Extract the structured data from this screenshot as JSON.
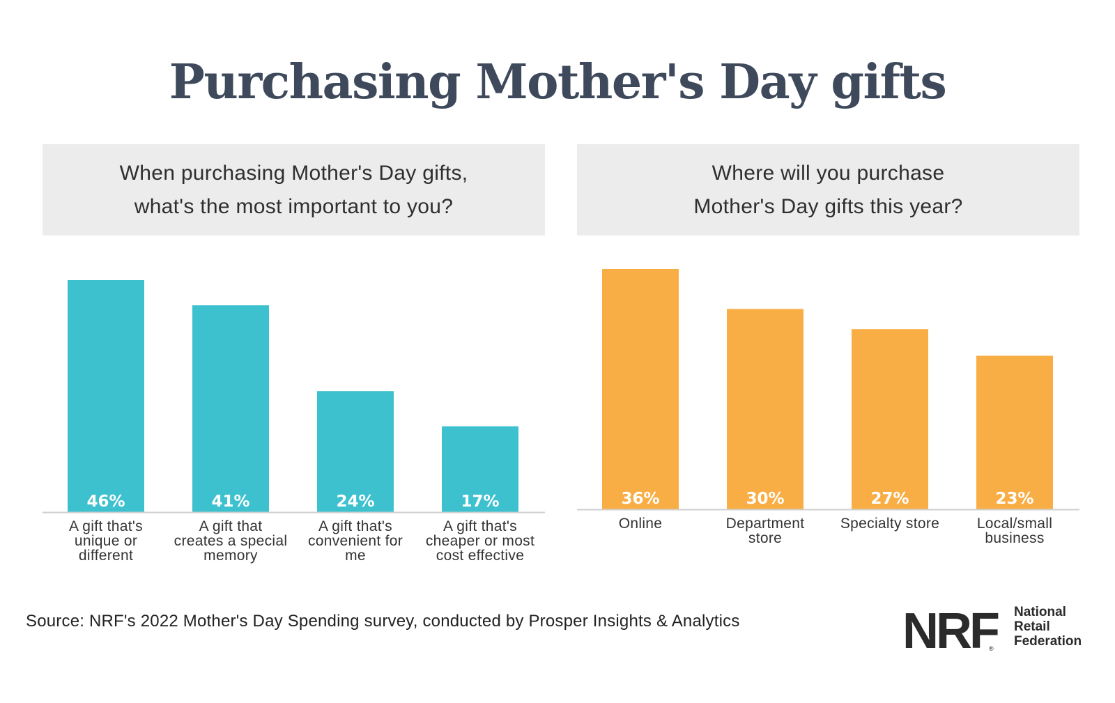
{
  "title": "Purchasing Mother's Day gifts",
  "questions": {
    "left": [
      "When purchasing Mother's Day gifts,",
      "what's the most important to you?"
    ],
    "right": [
      "Where will you purchase",
      "Mother's Day gifts this year?"
    ]
  },
  "chart_data": [
    {
      "type": "bar",
      "title": "When purchasing Mother's Day gifts, what's the most important to you?",
      "categories": [
        [
          "A gift that's",
          "unique or",
          "different"
        ],
        [
          "A gift that",
          "creates a special",
          "memory"
        ],
        [
          "A gift that's",
          "convenient for",
          "me"
        ],
        [
          "A gift that's",
          "cheaper or most",
          "cost effective"
        ]
      ],
      "values": [
        46,
        41,
        24,
        17
      ],
      "value_labels": [
        "46%",
        "41%",
        "24%",
        "17%"
      ],
      "color": "#3ec1cf",
      "ylim": [
        0,
        46
      ],
      "grid": false,
      "legend": "none"
    },
    {
      "type": "bar",
      "title": "Where will you purchase Mother's Day gifts this year?",
      "categories": [
        [
          "Online"
        ],
        [
          "Department",
          "store"
        ],
        [
          "Specialty store"
        ],
        [
          "Local/small",
          "business"
        ]
      ],
      "values": [
        36,
        30,
        27,
        23
      ],
      "value_labels": [
        "36%",
        "30%",
        "27%",
        "23%"
      ],
      "color": "#f9ae45",
      "ylim": [
        0,
        36
      ],
      "grid": false,
      "legend": "none"
    }
  ],
  "source": "Source: NRF's 2022 Mother's Day Spending survey, conducted by Prosper Insights & Analytics",
  "logo": {
    "mark": "NRF",
    "name_lines": [
      "National",
      "Retail",
      "Federation"
    ]
  },
  "colors": {
    "title": "#3e4a5c",
    "teal": "#3ec1cf",
    "orange": "#f9ae45",
    "question_bg": "#ececec"
  },
  "icons": {
    "logo": "nrf-logo-icon"
  }
}
